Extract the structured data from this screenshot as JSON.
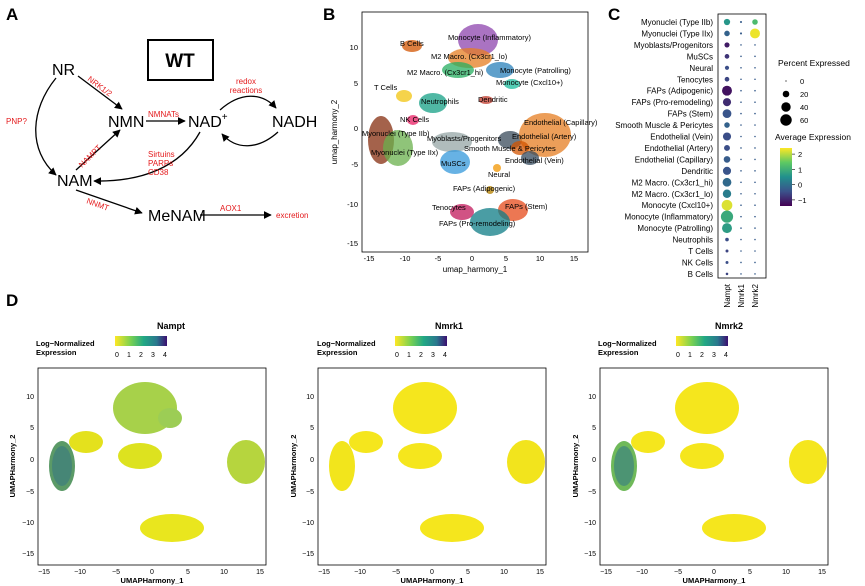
{
  "panels": {
    "a": "A",
    "b": "B",
    "c": "C",
    "d": "D"
  },
  "pathway": {
    "box_label": "WT",
    "nodes": {
      "nr": "NR",
      "nmn": "NMN",
      "nad": "NAD",
      "nad_sup": "+",
      "nadh": "NADH",
      "nam": "NAM",
      "menam": "MeNAM"
    },
    "enzymes": {
      "nrk": "NRK1/2",
      "pnp": "PNP?",
      "nmnats": "NMNATs",
      "nampt": "NAMPT",
      "nnmt": "NNMT",
      "aox1": "AOX1"
    },
    "redox": [
      "redox",
      "reactions"
    ],
    "consumers": [
      "Sirtuins",
      "PARPs",
      "CD38"
    ],
    "excretion": "excretion"
  },
  "umap_b": {
    "xlabel": "umap_harmony_1",
    "ylabel": "umap_harmony_2",
    "xticks": [
      "-15",
      "-10",
      "-5",
      "0",
      "5",
      "10",
      "15"
    ],
    "yticks": [
      "10",
      "5",
      "0",
      "-5",
      "-10",
      "-15"
    ],
    "labels": [
      "B Cells",
      "Monocyte (Inflammatory)",
      "M2 Macro. (Cx3cr1_lo)",
      "Monocyte (Patrolling)",
      "M2 Macro. (Cx3cr1_hi)",
      "Monocyte (Cxcl10+)",
      "T Cells",
      "Neutrophils",
      "Dendritic",
      "NK Cells",
      "Endothelial (Capillary)",
      "Myonuclei (Type IIb)",
      "Myoblasts/Progenitors",
      "Endothelial (Artery)",
      "Smooth Muscle & Pericytes",
      "Myonuclei (Type IIx)",
      "Endothelial (Vein)",
      "MuSCs",
      "Neural",
      "FAPs (Adipogenic)",
      "Tenocytes",
      "FAPs (Stem)",
      "FAPs (Pro-remodeling)"
    ]
  },
  "chart_data": {
    "type": "dotplot",
    "genes": [
      "Nampt",
      "Nmrk1",
      "Nmrk2"
    ],
    "cell_types": [
      "Myonuclei (Type IIb)",
      "Myonuclei (Type IIx)",
      "Myoblasts/Progenitors",
      "MuSCs",
      "Neural",
      "Tenocytes",
      "FAPs (Adipogenic)",
      "FAPs (Pro-remodeling)",
      "FAPs (Stem)",
      "Smooth Muscle & Pericytes",
      "Endothelial (Vein)",
      "Endothelial (Artery)",
      "Endothelial (Capillary)",
      "Dendritic",
      "M2 Macro. (Cx3cr1_hi)",
      "M2 Macro. (Cx3cr1_lo)",
      "Monocyte (Cxcl10+)",
      "Monocyte (Inflammatory)",
      "Monocyte (Patrolling)",
      "Neutrophils",
      "T Cells",
      "NK Cells",
      "B Cells"
    ],
    "percent_expressed": [
      [
        18,
        2,
        14
      ],
      [
        14,
        2,
        45
      ],
      [
        12,
        1,
        1
      ],
      [
        10,
        1,
        1
      ],
      [
        8,
        1,
        1
      ],
      [
        10,
        1,
        1
      ],
      [
        45,
        1,
        1
      ],
      [
        30,
        1,
        1
      ],
      [
        35,
        1,
        1
      ],
      [
        14,
        1,
        1
      ],
      [
        30,
        1,
        1
      ],
      [
        16,
        1,
        1
      ],
      [
        20,
        1,
        1
      ],
      [
        30,
        1,
        1
      ],
      [
        35,
        1,
        1
      ],
      [
        32,
        1,
        1
      ],
      [
        52,
        1,
        1
      ],
      [
        68,
        1,
        1
      ],
      [
        45,
        1,
        1
      ],
      [
        6,
        1,
        1
      ],
      [
        4,
        1,
        1
      ],
      [
        4,
        1,
        1
      ],
      [
        3,
        1,
        1
      ]
    ],
    "avg_expression": [
      [
        0.6,
        -0.3,
        1.2
      ],
      [
        -0.2,
        -0.3,
        2.3
      ],
      [
        -1.1,
        -0.3,
        -0.3
      ],
      [
        -0.8,
        -0.3,
        -0.3
      ],
      [
        -0.5,
        -0.3,
        -0.3
      ],
      [
        -0.6,
        -0.3,
        -0.3
      ],
      [
        -1.2,
        -0.3,
        -0.3
      ],
      [
        -0.9,
        -0.3,
        -0.3
      ],
      [
        -0.4,
        -0.3,
        -0.3
      ],
      [
        -0.2,
        -0.3,
        -0.3
      ],
      [
        -0.5,
        -0.3,
        -0.3
      ],
      [
        -0.5,
        -0.3,
        -0.3
      ],
      [
        -0.3,
        -0.3,
        -0.3
      ],
      [
        -0.4,
        -0.3,
        -0.3
      ],
      [
        -0.1,
        -0.3,
        -0.3
      ],
      [
        0.2,
        -0.3,
        -0.3
      ],
      [
        2.2,
        -0.3,
        -0.3
      ],
      [
        0.9,
        -0.3,
        -0.3
      ],
      [
        0.7,
        -0.3,
        -0.3
      ],
      [
        -0.5,
        -0.3,
        -0.3
      ],
      [
        -0.6,
        -0.3,
        -0.3
      ],
      [
        -0.5,
        -0.3,
        -0.3
      ],
      [
        -0.6,
        -0.3,
        -0.3
      ]
    ],
    "size_legend": {
      "title": "Percent Expressed",
      "values": [
        0,
        20,
        40,
        60
      ],
      "labels": [
        "0",
        "20",
        "40",
        "60"
      ]
    },
    "color_legend": {
      "title": "Average Expression",
      "ticks": [
        2,
        1,
        0,
        -1
      ],
      "labels": [
        "2",
        "1",
        "0",
        "−1"
      ],
      "range": [
        -1.4,
        2.4
      ]
    }
  },
  "feature_plots": [
    {
      "title": "Nampt"
    },
    {
      "title": "Nmrk1"
    },
    {
      "title": "Nmrk2"
    }
  ],
  "feature_common": {
    "legend_title": [
      "Log−Normalized",
      "Expression"
    ],
    "legend_ticks": [
      "0",
      "1",
      "2",
      "3",
      "4"
    ],
    "xlabel": "UMAPHarmony_1",
    "ylabel": "UMAPHarmony_2",
    "xticks": [
      "−15",
      "−10",
      "−5",
      "0",
      "5",
      "10",
      "15"
    ],
    "yticks": [
      "10",
      "5",
      "0",
      "−5",
      "−10",
      "−15"
    ]
  }
}
